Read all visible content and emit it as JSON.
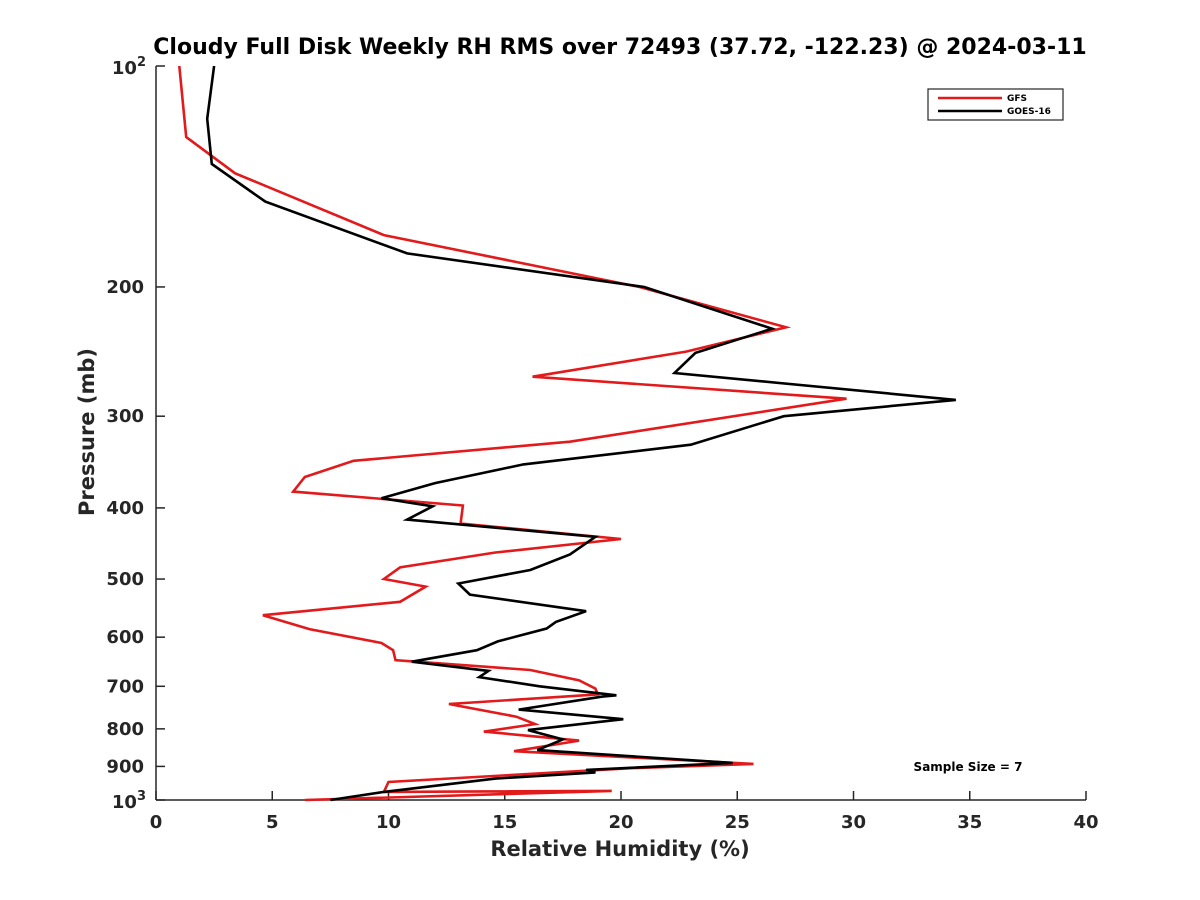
{
  "chart_data": {
    "type": "line",
    "title": "Cloudy Full Disk Weekly RH RMS over 72493 (37.72, -122.23) @ 2024-03-11",
    "xlabel": "Relative Humidity (%)",
    "ylabel": "Pressure (mb)",
    "xlim": [
      0,
      40
    ],
    "ylim": [
      100,
      1000
    ],
    "yscale": "log",
    "y_reversed": true,
    "grid": false,
    "legend_position": "top-right",
    "x_ticks": [
      "0",
      "5",
      "10",
      "15",
      "20",
      "25",
      "30",
      "35",
      "40"
    ],
    "y_ticks": [
      {
        "value": 100,
        "base": "10",
        "exp": "2"
      },
      {
        "value": 200,
        "label": "200"
      },
      {
        "value": 300,
        "label": "300"
      },
      {
        "value": 400,
        "label": "400"
      },
      {
        "value": 500,
        "label": "500"
      },
      {
        "value": 600,
        "label": "600"
      },
      {
        "value": 700,
        "label": "700"
      },
      {
        "value": 800,
        "label": "800"
      },
      {
        "value": 900,
        "label": "900"
      },
      {
        "value": 1000,
        "base": "10",
        "exp": "3"
      }
    ],
    "annotation": "Sample Size = 7",
    "series": [
      {
        "name": "GFS",
        "color": "#e31a1c",
        "points": [
          [
            1.0,
            100
          ],
          [
            1.3,
            125
          ],
          [
            3.4,
            140
          ],
          [
            9.8,
            170
          ],
          [
            20.8,
            200
          ],
          [
            27.1,
            227
          ],
          [
            22.8,
            245
          ],
          [
            16.2,
            265
          ],
          [
            29.7,
            284
          ],
          [
            17.8,
            325
          ],
          [
            8.5,
            345
          ],
          [
            6.4,
            363
          ],
          [
            5.9,
            380
          ],
          [
            13.2,
            397
          ],
          [
            13.1,
            420
          ],
          [
            20.0,
            441
          ],
          [
            14.6,
            460
          ],
          [
            10.5,
            482
          ],
          [
            9.8,
            500
          ],
          [
            11.6,
            512
          ],
          [
            10.5,
            537
          ],
          [
            4.6,
            560
          ],
          [
            6.6,
            585
          ],
          [
            9.7,
            611
          ],
          [
            10.2,
            625
          ],
          [
            10.3,
            645
          ],
          [
            16.1,
            665
          ],
          [
            18.2,
            687
          ],
          [
            18.9,
            705
          ],
          [
            19.0,
            718
          ],
          [
            12.6,
            740
          ],
          [
            15.5,
            770
          ],
          [
            16.3,
            788
          ],
          [
            14.1,
            807
          ],
          [
            18.2,
            830
          ],
          [
            15.4,
            858
          ],
          [
            25.7,
            893
          ],
          [
            20.4,
            905
          ],
          [
            10.0,
            945
          ],
          [
            9.8,
            975
          ],
          [
            19.6,
            972
          ],
          [
            6.4,
            1000
          ]
        ]
      },
      {
        "name": "GOES-16",
        "color": "#000000",
        "points": [
          [
            2.5,
            100
          ],
          [
            2.2,
            118
          ],
          [
            2.4,
            136
          ],
          [
            4.7,
            153
          ],
          [
            10.8,
            180
          ],
          [
            21.0,
            200
          ],
          [
            26.5,
            228
          ],
          [
            23.2,
            246
          ],
          [
            22.3,
            262
          ],
          [
            34.4,
            285
          ],
          [
            27.0,
            300
          ],
          [
            23.0,
            328
          ],
          [
            15.8,
            349
          ],
          [
            12.0,
            370
          ],
          [
            9.7,
            388
          ],
          [
            11.9,
            398
          ],
          [
            10.8,
            415
          ],
          [
            18.9,
            438
          ],
          [
            17.8,
            463
          ],
          [
            16.1,
            486
          ],
          [
            13.0,
            507
          ],
          [
            13.5,
            525
          ],
          [
            18.5,
            553
          ],
          [
            17.2,
            572
          ],
          [
            16.8,
            584
          ],
          [
            14.7,
            608
          ],
          [
            13.8,
            625
          ],
          [
            11.0,
            648
          ],
          [
            14.3,
            667
          ],
          [
            13.9,
            680
          ],
          [
            16.5,
            700
          ],
          [
            19.8,
            720
          ],
          [
            19.2,
            723
          ],
          [
            15.6,
            753
          ],
          [
            20.1,
            776
          ],
          [
            16.0,
            803
          ],
          [
            17.5,
            827
          ],
          [
            16.4,
            855
          ],
          [
            24.8,
            890
          ],
          [
            18.5,
            910
          ],
          [
            18.9,
            917
          ],
          [
            14.6,
            935
          ],
          [
            9.8,
            975
          ],
          [
            7.5,
            1000
          ]
        ]
      }
    ]
  }
}
